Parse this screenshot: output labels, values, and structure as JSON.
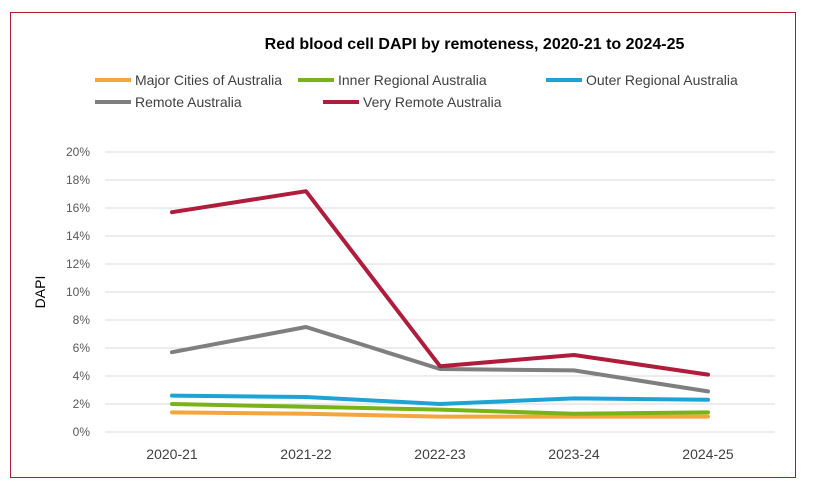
{
  "chart_data": {
    "type": "line",
    "title": "Red blood cell DAPI by remoteness, 2020-21 to 2024-25",
    "xlabel": "",
    "ylabel": "DAPI",
    "categories": [
      "2020-21",
      "2021-22",
      "2022-23",
      "2023-24",
      "2024-25"
    ],
    "ylim": [
      0,
      20
    ],
    "yticks": [
      "0%",
      "2%",
      "4%",
      "6%",
      "8%",
      "10%",
      "12%",
      "14%",
      "16%",
      "18%",
      "20%"
    ],
    "grid": true,
    "legend": "top",
    "series": [
      {
        "name": "Major Cities of Australia",
        "color": "#f4a53c",
        "values": [
          1.4,
          1.3,
          1.1,
          1.1,
          1.1
        ]
      },
      {
        "name": "Inner Regional Australia",
        "color": "#7ab317",
        "values": [
          2.0,
          1.8,
          1.6,
          1.3,
          1.4
        ]
      },
      {
        "name": "Outer Regional Australia",
        "color": "#1ea4d4",
        "values": [
          2.6,
          2.5,
          2.0,
          2.4,
          2.3
        ]
      },
      {
        "name": "Remote Australia",
        "color": "#7f7f7f",
        "values": [
          5.7,
          7.5,
          4.5,
          4.4,
          2.9
        ]
      },
      {
        "name": "Very Remote Australia",
        "color": "#b01c3c",
        "values": [
          15.7,
          17.2,
          4.7,
          5.5,
          4.1
        ]
      }
    ]
  }
}
